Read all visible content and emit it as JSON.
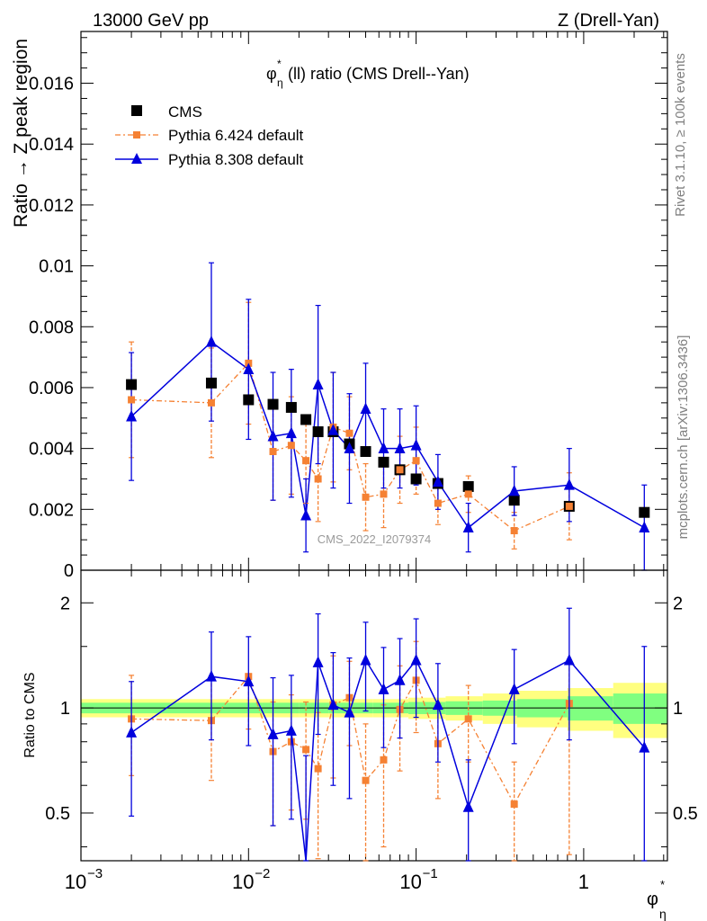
{
  "header": {
    "energy": "13000 GeV pp",
    "process": "Z (Drell-Yan)",
    "title_main": "φ",
    "title_sup": "*",
    "title_sub": "η",
    "title_rest": "(ll) ratio (CMS Drell--Yan)",
    "rivet_label": "Rivet 3.1.10, ≥ 100k events",
    "mcplots_label": "mcplots.cern.ch [arXiv:1306.3436]",
    "analysis_label": "CMS_2022_I2079374"
  },
  "axes": {
    "top_ylabel": "Ratio → Z peak region",
    "bottom_ylabel": "Ratio to CMS",
    "xlabel_main": "φ",
    "xlabel_sup": "*",
    "xlabel_sub": "η",
    "top_yticks": [
      "0",
      "0.002",
      "0.004",
      "0.006",
      "0.008",
      "0.01",
      "0.012",
      "0.014",
      "0.016"
    ],
    "bottom_yticks": [
      "0.5",
      "1",
      "2"
    ],
    "x_tick_labels": [
      {
        "base": "10",
        "exp": "−3"
      },
      {
        "base": "10",
        "exp": "−2"
      },
      {
        "base": "10",
        "exp": "−1"
      },
      {
        "base": "1",
        "exp": ""
      }
    ]
  },
  "legend": [
    {
      "label": "CMS",
      "color": "#000000",
      "marker": "square"
    },
    {
      "label": "Pythia 6.424 default",
      "color": "#f58133",
      "marker": "square"
    },
    {
      "label": "Pythia 8.308 default",
      "color": "#0000dd",
      "marker": "triangle"
    }
  ],
  "chart_data": {
    "type": "line",
    "xscale": "log",
    "xlim": [
      0.001,
      3.16
    ],
    "top_ylim": [
      0,
      0.0177
    ],
    "ratio_ylim": [
      0.365,
      2.48
    ],
    "x": [
      0.002,
      0.006,
      0.01,
      0.014,
      0.018,
      0.022,
      0.026,
      0.032,
      0.04,
      0.05,
      0.064,
      0.08,
      0.1,
      0.135,
      0.205,
      0.385,
      0.82,
      2.3
    ],
    "series": [
      {
        "name": "CMS",
        "color": "#000000",
        "values": [
          0.0061,
          0.00615,
          0.0056,
          0.00545,
          0.00535,
          0.00495,
          0.00455,
          0.00455,
          0.00415,
          0.0039,
          0.00355,
          0.0033,
          0.003,
          0.00285,
          0.00275,
          0.0023,
          0.0021,
          0.0019
        ],
        "errors": [
          0.0001,
          0.0001,
          0.0001,
          0.0001,
          0.0001,
          0.0001,
          0.0001,
          0.0001,
          0.0001,
          0.0001,
          0.0001,
          0.0001,
          0.0001,
          0.0001,
          0.0001,
          0.0001,
          0.0001,
          0.0001
        ]
      },
      {
        "name": "Pythia 6.424 default",
        "color": "#f58133",
        "values": [
          0.0056,
          0.0055,
          0.0068,
          0.0039,
          0.0041,
          0.0036,
          0.003,
          0.0047,
          0.0045,
          0.0024,
          0.0025,
          0.0033,
          0.0036,
          0.0022,
          0.0025,
          0.0013,
          0.0021,
          null
        ],
        "errors": [
          0.0019,
          0.0018,
          0.002,
          0.0016,
          0.0016,
          0.0014,
          0.0014,
          0.0018,
          0.0012,
          0.0011,
          0.0011,
          0.0011,
          0.0011,
          0.0007,
          0.0006,
          0.0006,
          0.0011,
          null
        ]
      },
      {
        "name": "Pythia 8.308 default",
        "color": "#0000dd",
        "values": [
          0.00505,
          0.0075,
          0.0066,
          0.0044,
          0.0045,
          0.0018,
          0.0061,
          0.0046,
          0.004,
          0.0053,
          0.004,
          0.004,
          0.0041,
          0.0029,
          0.0014,
          0.0026,
          0.0028,
          0.0014
        ],
        "errors": [
          0.0021,
          0.0026,
          0.0023,
          0.0021,
          0.0021,
          0.0012,
          0.0026,
          0.0019,
          0.0018,
          0.0015,
          0.0013,
          0.0013,
          0.0013,
          0.0009,
          0.0008,
          0.0008,
          0.0012,
          0.0014
        ]
      }
    ],
    "ratio_series": [
      {
        "name": "Pythia 6.424 default",
        "color": "#f58133",
        "values": [
          0.93,
          0.92,
          1.23,
          0.75,
          0.8,
          0.76,
          0.67,
          1.02,
          1.07,
          0.62,
          0.71,
          0.99,
          1.2,
          0.79,
          0.93,
          0.53,
          1.03,
          null
        ],
        "lo": [
          0.64,
          0.62,
          0.87,
          0.46,
          0.51,
          0.48,
          0.37,
          0.63,
          0.78,
          0.34,
          0.4,
          0.66,
          0.85,
          0.55,
          0.7,
          0.36,
          0.38,
          null
        ],
        "hi": [
          1.24,
          1.22,
          1.24,
          1.04,
          1.09,
          1.04,
          0.97,
          1.41,
          1.36,
          0.9,
          1.02,
          1.32,
          1.55,
          1.03,
          1.16,
          0.7,
          1.35,
          null
        ]
      },
      {
        "name": "Pythia 8.308 default",
        "color": "#0000dd",
        "values": [
          0.85,
          1.23,
          1.19,
          0.84,
          0.86,
          0.35,
          1.35,
          1.02,
          0.97,
          1.37,
          1.13,
          1.2,
          1.37,
          1.02,
          0.52,
          1.13,
          1.37,
          0.77
        ],
        "lo": [
          0.49,
          0.81,
          0.78,
          0.46,
          0.48,
          0.2,
          0.84,
          0.6,
          0.55,
          0.98,
          0.77,
          0.82,
          0.94,
          0.7,
          0.33,
          0.79,
          0.81,
          0.2
        ],
        "hi": [
          1.19,
          1.65,
          1.6,
          1.22,
          1.24,
          0.73,
          1.86,
          1.44,
          1.39,
          1.76,
          1.49,
          1.58,
          1.8,
          1.34,
          0.71,
          1.47,
          1.93,
          1.5
        ]
      }
    ],
    "band_edges": [
      0.001,
      0.012,
      0.02,
      0.03,
      0.055,
      0.09,
      0.15,
      0.25,
      0.4,
      0.8,
      1.5,
      3.16
    ],
    "band_inner": [
      0.035,
      0.035,
      0.035,
      0.035,
      0.035,
      0.04,
      0.045,
      0.05,
      0.06,
      0.08,
      0.1
    ],
    "band_outer": [
      0.06,
      0.06,
      0.06,
      0.06,
      0.06,
      0.07,
      0.08,
      0.1,
      0.12,
      0.14,
      0.18
    ]
  }
}
